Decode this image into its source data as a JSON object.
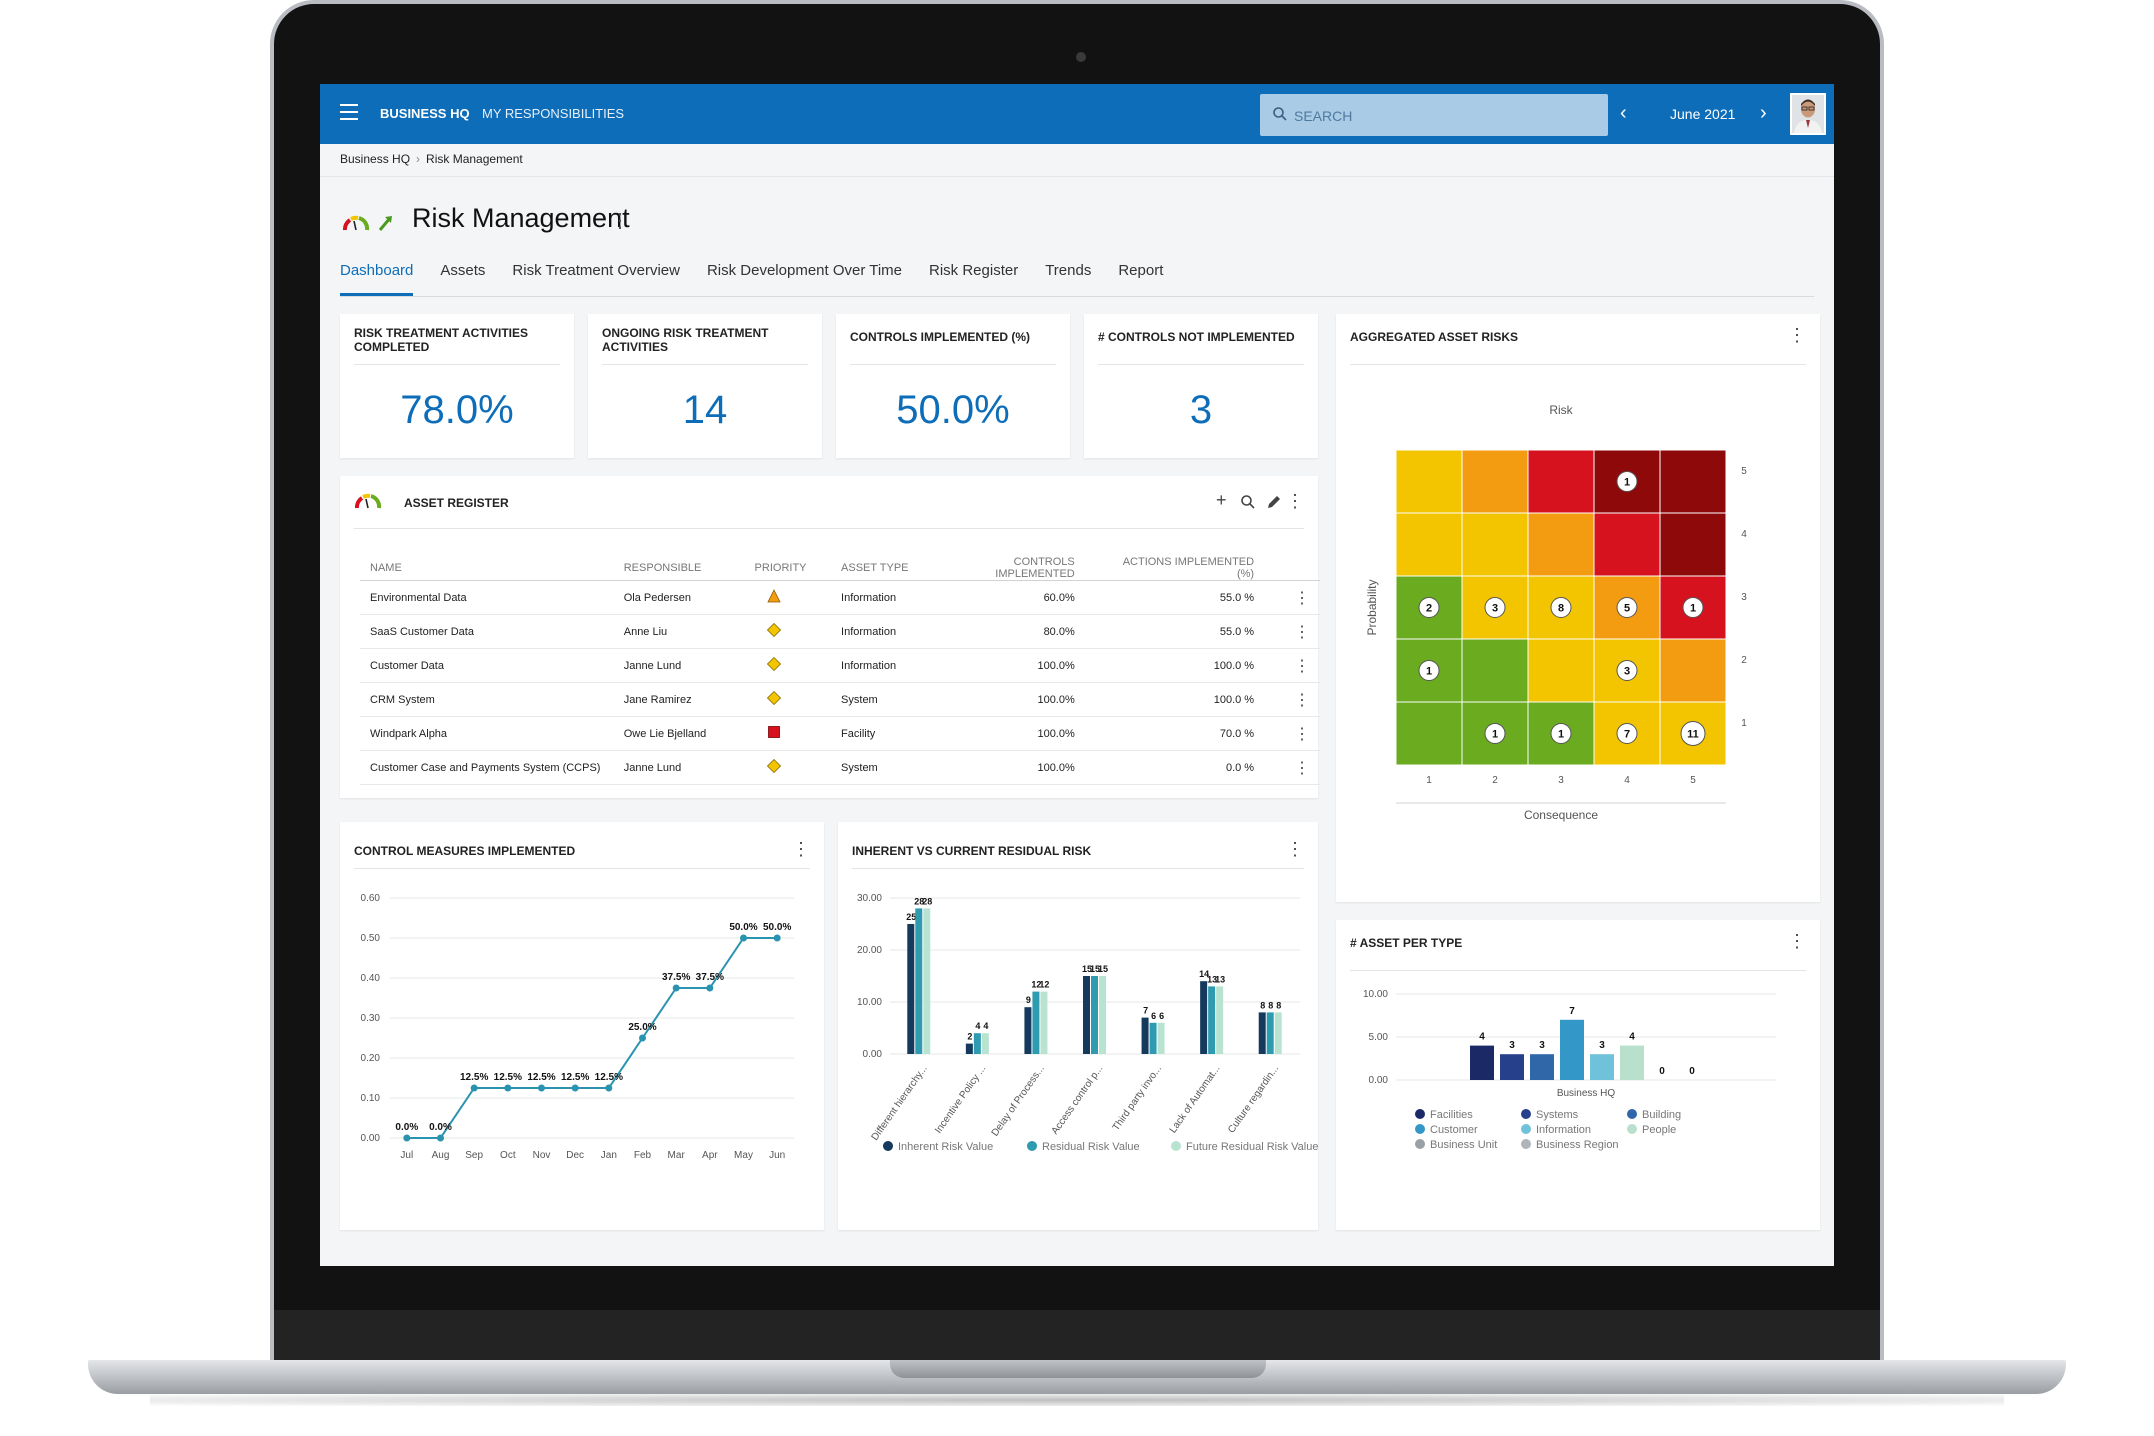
{
  "topbar": {
    "nav": [
      "BUSINESS HQ",
      "MY RESPONSIBILITIES"
    ],
    "search_placeholder": "SEARCH",
    "month": "June 2021"
  },
  "breadcrumb": [
    "Business HQ",
    "Risk Management"
  ],
  "page": {
    "title": "Risk Management",
    "tabs": [
      "Dashboard",
      "Assets",
      "Risk Treatment Overview",
      "Risk Development Over Time",
      "Risk Register",
      "Trends",
      "Report"
    ],
    "active_tab": "Dashboard"
  },
  "kpis": [
    {
      "title": "RISK TREATMENT ACTIVITIES COMPLETED",
      "value": "78.0%"
    },
    {
      "title": "ONGOING RISK TREATMENT ACTIVITIES",
      "value": "14"
    },
    {
      "title": "CONTROLS IMPLEMENTED (%)",
      "value": "50.0%"
    },
    {
      "title": "# CONTROLS NOT IMPLEMENTED",
      "value": "3"
    }
  ],
  "asset_register": {
    "title": "ASSET REGISTER",
    "columns": [
      "NAME",
      "RESPONSIBLE",
      "PRIORITY",
      "ASSET TYPE",
      "CONTROLS IMPLEMENTED",
      "ACTIONS IMPLEMENTED (%)"
    ],
    "rows": [
      {
        "name": "Environmental Data",
        "responsible": "Ola Pedersen",
        "priority": "orange-triangle",
        "type": "Information",
        "controls": "60.0%",
        "actions": "55.0 %"
      },
      {
        "name": "SaaS Customer Data",
        "responsible": "Anne Liu",
        "priority": "yellow-diamond",
        "type": "Information",
        "controls": "80.0%",
        "actions": "55.0 %"
      },
      {
        "name": "Customer Data",
        "responsible": "Janne Lund",
        "priority": "yellow-diamond",
        "type": "Information",
        "controls": "100.0%",
        "actions": "100.0 %"
      },
      {
        "name": "CRM System",
        "responsible": "Jane Ramirez",
        "priority": "yellow-diamond",
        "type": "System",
        "controls": "100.0%",
        "actions": "100.0 %"
      },
      {
        "name": "Windpark Alpha",
        "responsible": "Owe Lie Bjelland",
        "priority": "red-square",
        "type": "Facility",
        "controls": "100.0%",
        "actions": "70.0 %"
      },
      {
        "name": "Customer Case and Payments System (CCPS)",
        "responsible": "Janne Lund",
        "priority": "yellow-diamond",
        "type": "System",
        "controls": "100.0%",
        "actions": "0.0 %"
      }
    ]
  },
  "colors": {
    "brand": "#0d6db8",
    "risk_green": "#6aab1f",
    "risk_yellow": "#f2c500",
    "risk_orange": "#f39c12",
    "risk_red": "#d6121f",
    "risk_darkred": "#8e0a0a"
  },
  "chart_data": [
    {
      "id": "control-measures",
      "type": "line",
      "title": "CONTROL MEASURES IMPLEMENTED",
      "categories": [
        "Jul",
        "Aug",
        "Sep",
        "Oct",
        "Nov",
        "Dec",
        "Jan",
        "Feb",
        "Mar",
        "Apr",
        "May",
        "Jun"
      ],
      "values": [
        0,
        0,
        0.125,
        0.125,
        0.125,
        0.125,
        0.125,
        0.25,
        0.375,
        0.375,
        0.5,
        0.5
      ],
      "labels": [
        "0.0%",
        "0.0%",
        "12.5%",
        "12.5%",
        "12.5%",
        "12.5%",
        "12.5%",
        "25.0%",
        "37.5%",
        "37.5%",
        "50.0%",
        "50.0%"
      ],
      "yticks": [
        "0.00",
        "0.10",
        "0.20",
        "0.30",
        "0.40",
        "0.50",
        "0.60"
      ],
      "ylim": [
        0,
        0.6
      ]
    },
    {
      "id": "inherent-vs-residual",
      "type": "bar",
      "title": "INHERENT VS CURRENT RESIDUAL RISK",
      "categories": [
        "Different hierarchy...",
        "Incentive Policy ...",
        "Delay of Process...",
        "Access control p...",
        "Third party invo...",
        "Lack of Automat...",
        "Culture regardin..."
      ],
      "series": [
        {
          "name": "Inherent Risk Value",
          "values": [
            25,
            2,
            9,
            15,
            7,
            14,
            8
          ],
          "labels": [
            "25",
            "2",
            "9",
            "15",
            "7",
            "14",
            "8"
          ]
        },
        {
          "name": "Residual Risk Value",
          "values": [
            28,
            4,
            12,
            15,
            6,
            13,
            8
          ],
          "labels": [
            "28",
            "4",
            "12",
            "15",
            "6",
            "13",
            "8"
          ]
        },
        {
          "name": "Future Residual Risk Value",
          "values": [
            28,
            4,
            12,
            15,
            6,
            13,
            8
          ],
          "labels": [
            "28",
            "4",
            "12",
            "15",
            "6",
            "13",
            "8"
          ]
        }
      ],
      "yticks": [
        "0.00",
        "10.00",
        "20.00",
        "30.00"
      ],
      "ylim": [
        0,
        30
      ]
    },
    {
      "id": "aggregated-asset-risks",
      "type": "heatmap",
      "title": "AGGREGATED ASSET RISKS",
      "top_label": "Risk",
      "xlabel": "Consequence",
      "ylabel": "Probability",
      "x": [
        "1",
        "2",
        "3",
        "4",
        "5"
      ],
      "y": [
        "5",
        "4",
        "3",
        "2",
        "1"
      ],
      "cells": [
        [
          "yellow",
          "orange",
          "red",
          "darkred",
          "darkred"
        ],
        [
          "yellow",
          "yellow",
          "orange",
          "red",
          "darkred"
        ],
        [
          "green",
          "yellow",
          "yellow",
          "orange",
          "red"
        ],
        [
          "green",
          "green",
          "yellow",
          "yellow",
          "orange"
        ],
        [
          "green",
          "green",
          "green",
          "yellow",
          "yellow"
        ]
      ],
      "counts": [
        [
          "",
          "",
          "",
          "1",
          ""
        ],
        [
          "",
          "",
          "",
          "",
          ""
        ],
        [
          "2",
          "3",
          "8",
          "5",
          "1"
        ],
        [
          "1",
          "",
          "",
          "3",
          ""
        ],
        [
          "",
          "1",
          "1",
          "7",
          "11"
        ]
      ]
    },
    {
      "id": "asset-per-type",
      "type": "bar",
      "title": "# ASSET PER TYPE",
      "categories": [
        "Business HQ"
      ],
      "series": [
        {
          "name": "Facilities",
          "values": [
            4
          ],
          "color": "#1b2a66"
        },
        {
          "name": "Systems",
          "values": [
            3
          ],
          "color": "#27408b"
        },
        {
          "name": "Building",
          "values": [
            3
          ],
          "color": "#2f67a8"
        },
        {
          "name": "Customer",
          "values": [
            7
          ],
          "color": "#3398c8"
        },
        {
          "name": "Information",
          "values": [
            3
          ],
          "color": "#6fc2d9"
        },
        {
          "name": "People",
          "values": [
            4
          ],
          "color": "#b9e0cc"
        },
        {
          "name": "Business Unit",
          "values": [
            0
          ],
          "color": "#9aa0a6"
        },
        {
          "name": "Business Region",
          "values": [
            0
          ],
          "color": "#b0b5ba"
        }
      ],
      "yticks": [
        "0.00",
        "5.00",
        "10.00"
      ],
      "ylim": [
        0,
        10
      ]
    }
  ]
}
